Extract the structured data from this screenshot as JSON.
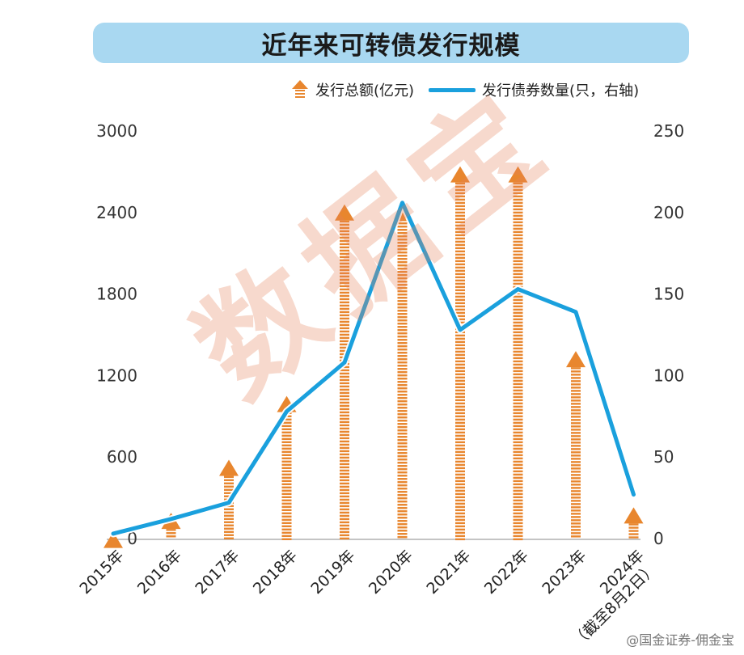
{
  "title": "近年来可转债发行规模",
  "legend": {
    "bar_label": "发行总额(亿元)",
    "line_label": "发行债券数量(只，右轴)"
  },
  "watermark": "数据宝",
  "credit": "@国金证券-佣金宝",
  "colors": {
    "title_bg": "#a9d8f1",
    "bar": "#e8862e",
    "line": "#1aa0dd"
  },
  "chart_data": {
    "type": "bar",
    "categories": [
      "2015年",
      "2016年",
      "2017年",
      "2018年",
      "2019年",
      "2020年",
      "2021年",
      "2022年",
      "2023年",
      "2024年\n（截至8月2日）"
    ],
    "series": [
      {
        "name": "发行总额(亿元)",
        "axis": "left",
        "type": "bar",
        "values": [
          50,
          190,
          580,
          1050,
          2460,
          2470,
          2740,
          2740,
          1380,
          230
        ]
      },
      {
        "name": "发行债券数量(只，右轴)",
        "axis": "right",
        "type": "line",
        "values": [
          3,
          12,
          22,
          78,
          108,
          206,
          128,
          153,
          139,
          27
        ]
      }
    ],
    "y_left": {
      "ticks": [
        "0",
        "600",
        "1200",
        "1800",
        "2400",
        "3000"
      ],
      "range": [
        0,
        3000
      ]
    },
    "y_right": {
      "ticks": [
        "0",
        "50",
        "100",
        "150",
        "200",
        "250"
      ],
      "range": [
        0,
        250
      ]
    },
    "grid": false,
    "legend_position": "top-right"
  }
}
